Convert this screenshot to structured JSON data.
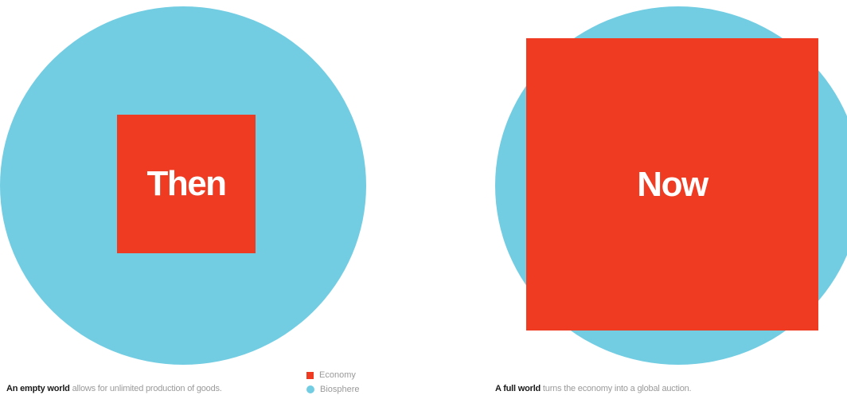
{
  "colors": {
    "economy": "#ee3b22",
    "biosphere": "#72cde3"
  },
  "panels": [
    {
      "square_label": "Then",
      "caption_lead": "An empty world",
      "caption_rest": " allows for unlimited production of goods."
    },
    {
      "square_label": "Now",
      "caption_lead": "A full world",
      "caption_rest": " turns the economy into a global auction."
    }
  ],
  "legend": {
    "economy_label": "Economy",
    "biosphere_label": "Biosphere"
  }
}
